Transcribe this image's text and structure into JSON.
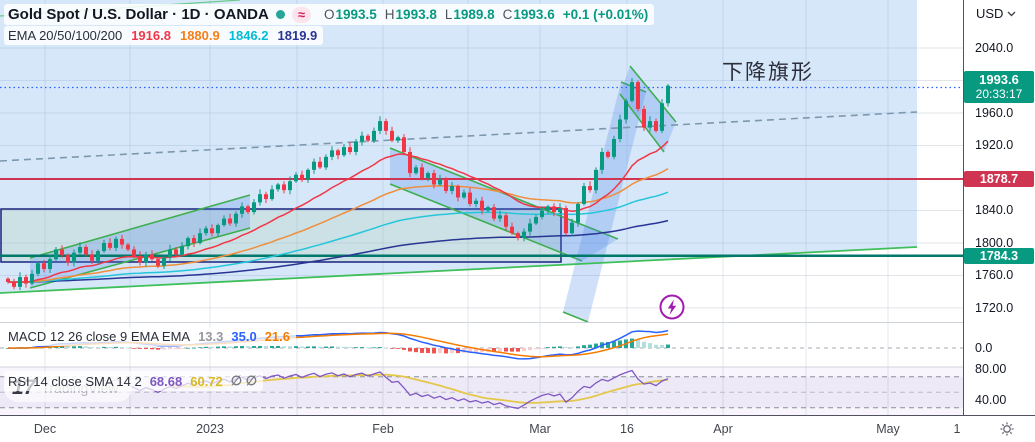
{
  "header": {
    "symbol_title": "Gold Spot / U.S. Dollar · 1D · OANDA",
    "approx_badge": "≈",
    "ohlc": {
      "o_label": "O",
      "o": "1993.5",
      "h_label": "H",
      "h": "1993.8",
      "l_label": "L",
      "l": "1989.8",
      "c_label": "C",
      "c": "1993.6",
      "change": "+0.1 (+0.01%)"
    },
    "ema_legend": {
      "label": "EMA 20/50/100/200",
      "v20": "1916.8",
      "v50": "1880.9",
      "v100": "1846.2",
      "v200": "1819.9"
    }
  },
  "macd_legend": {
    "label": "MACD 12 26 close 9 EMA EMA",
    "hist": "13.3",
    "macd": "35.0",
    "signal": "21.6"
  },
  "rsi_legend": {
    "label": "RSI 14 close SMA 14 2",
    "rsi": "68.68",
    "sma": "60.72",
    "empty": "∅ ∅"
  },
  "annotation": {
    "text": "下降旗形"
  },
  "watermark": {
    "logo": "17",
    "text": "TradingView"
  },
  "price_axis": {
    "currency": "USD",
    "ticks": [
      "2040.0",
      "1960.0",
      "1920.0",
      "1840.0",
      "1800.0",
      "1760.0",
      "1720.0"
    ],
    "macd_tick": "0.0",
    "rsi_ticks": [
      "80.00",
      "40.00"
    ],
    "current_price": "1993.6",
    "countdown": "20:33:17",
    "resistance": "1878.7",
    "support": "1784.3"
  },
  "time_axis": {
    "labels": [
      "Dec",
      "2023",
      "Feb",
      "Mar",
      "16",
      "Apr",
      "May",
      "1"
    ]
  },
  "colors": {
    "up": "#089981",
    "down": "#f23645",
    "ema20": "#f23645",
    "ema50": "#ef8e3c",
    "ema100": "#26c6da",
    "ema200": "#283593",
    "macd_line": "#2962ff",
    "signal_line": "#f57c00",
    "hist_pos": "#26a69a",
    "hist_pos_weak": "#b2dfdb",
    "hist_neg": "#ef5350",
    "hist_neg_weak": "#fccbcd",
    "rsi_line": "#7e57c2",
    "rsi_sma": "#e3c84b",
    "resistance": "#cf3550",
    "support": "#00796b",
    "current": "#089981",
    "dashed_trend": "#7c98ad",
    "dotted_price": "#2962ff",
    "channel_stroke": "#3fae4e",
    "channel_fill": "rgba(73,133,231,0.25)",
    "region_fill": "rgba(120,175,240,0.30)",
    "box_stroke": "#1a237e",
    "box_fill": "rgba(150,190,110,0.14)"
  },
  "chart_data": {
    "type": "candlestick",
    "title": "Gold Spot / U.S. Dollar",
    "interval": "1D",
    "exchange": "OANDA",
    "current_ohlc": {
      "open": 1993.5,
      "high": 1993.8,
      "low": 1989.8,
      "close": 1993.6,
      "change": 0.1,
      "change_pct": 0.01
    },
    "ylim": [
      1700,
      2060
    ],
    "x_range_labels": [
      "Dec",
      "2023",
      "Feb",
      "Mar",
      "16",
      "Apr",
      "May"
    ],
    "levels": {
      "resistance": 1878.7,
      "support": 1784.3,
      "current": 1993.6
    },
    "ema": {
      "periods": [
        20,
        50,
        100,
        200
      ],
      "last_values": [
        1916.8,
        1880.9,
        1846.2,
        1819.9
      ]
    },
    "macd": {
      "fast": 12,
      "slow": 26,
      "source": "close",
      "signal": 9,
      "hist": 13.3,
      "macd": 35.0,
      "signal_value": 21.6
    },
    "rsi": {
      "length": 14,
      "source": "close",
      "sma_length": 14,
      "rsi": 68.68,
      "sma": 60.72,
      "bands": [
        70,
        50,
        30
      ]
    },
    "annotation": "下降旗形 (descending flag)",
    "closes": [
      1752,
      1746,
      1758,
      1750,
      1762,
      1775,
      1768,
      1780,
      1792,
      1785,
      1776,
      1788,
      1795,
      1786,
      1778,
      1790,
      1800,
      1794,
      1805,
      1798,
      1792,
      1784,
      1776,
      1786,
      1780,
      1772,
      1782,
      1792,
      1786,
      1796,
      1806,
      1800,
      1812,
      1818,
      1812,
      1822,
      1830,
      1824,
      1836,
      1845,
      1838,
      1850,
      1860,
      1854,
      1866,
      1872,
      1865,
      1876,
      1884,
      1878,
      1890,
      1900,
      1893,
      1906,
      1914,
      1908,
      1918,
      1912,
      1925,
      1932,
      1926,
      1938,
      1950,
      1938,
      1926,
      1930,
      1912,
      1886,
      1893,
      1880,
      1886,
      1872,
      1878,
      1864,
      1870,
      1856,
      1862,
      1848,
      1852,
      1840,
      1844,
      1830,
      1834,
      1820,
      1812,
      1806,
      1814,
      1824,
      1832,
      1840,
      1845,
      1838,
      1843,
      1812,
      1825,
      1848,
      1870,
      1865,
      1890,
      1912,
      1906,
      1928,
      1952,
      1975,
      1998,
      1965,
      1942,
      1950,
      1938,
      1972,
      1993.6
    ]
  }
}
